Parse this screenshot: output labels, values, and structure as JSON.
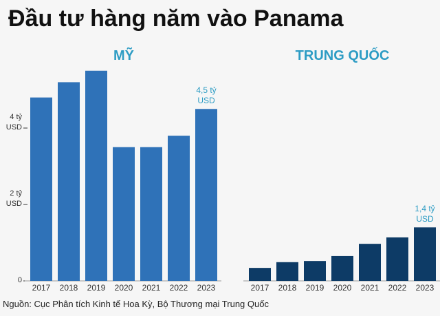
{
  "title": "Đầu tư hàng năm vào Panama",
  "source": "Nguồn: Cục Phân tích Kinh tế Hoa Kỳ, Bộ Thương mại Trung Quốc",
  "chart_data": [
    {
      "type": "bar",
      "title": "MỸ",
      "categories": [
        "2017",
        "2018",
        "2019",
        "2020",
        "2021",
        "2022",
        "2023"
      ],
      "values": [
        4.8,
        5.2,
        5.5,
        3.5,
        3.5,
        3.8,
        4.5
      ],
      "color": "#2f72b8",
      "ylim": [
        0,
        6
      ],
      "yticks": [
        0,
        {
          "value": 2,
          "label": "2 tỷ USD"
        },
        {
          "value": 4,
          "label": "4 tỷ USD"
        }
      ],
      "annotation": "4,5 tỷ USD"
    },
    {
      "type": "bar",
      "title": "TRUNG QUỐC",
      "categories": [
        "2017",
        "2018",
        "2019",
        "2020",
        "2021",
        "2022",
        "2023"
      ],
      "values": [
        0.34,
        0.49,
        0.52,
        0.65,
        0.97,
        1.14,
        1.4
      ],
      "color": "#0d3b66",
      "ylim": [
        0,
        6
      ],
      "annotation": "1,4 tỷ USD"
    }
  ]
}
